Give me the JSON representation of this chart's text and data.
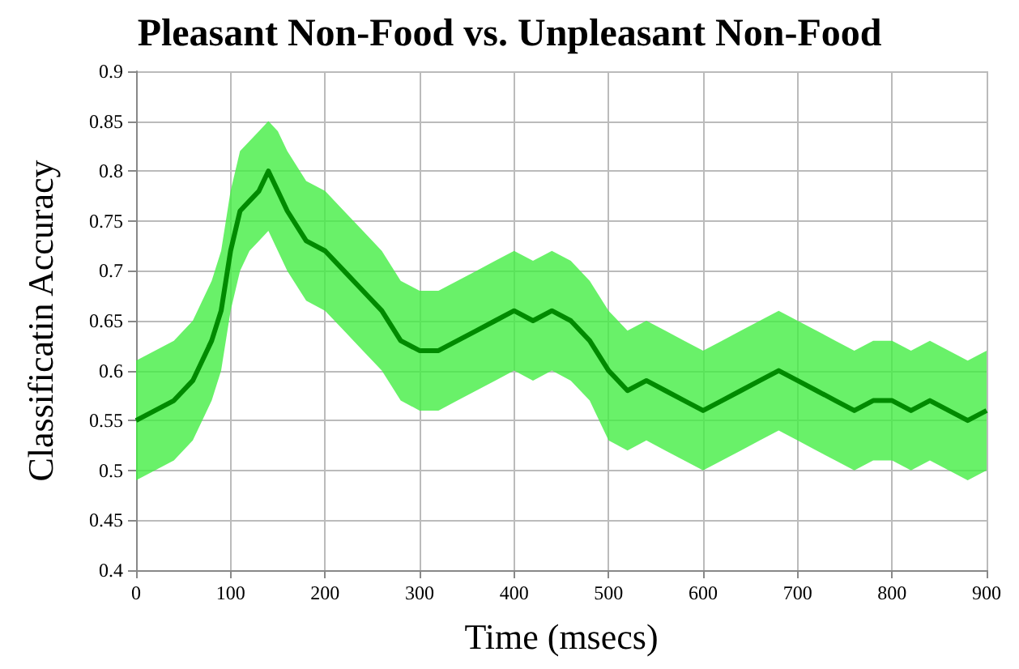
{
  "chart_data": {
    "type": "line",
    "title": "Pleasant Non-Food vs. Unpleasant Non-Food",
    "xlabel": "Time (msecs)",
    "ylabel": "Classificatin Accuracy",
    "x": [
      0,
      20,
      40,
      60,
      80,
      90,
      100,
      110,
      120,
      130,
      140,
      150,
      160,
      180,
      200,
      220,
      240,
      260,
      280,
      300,
      320,
      340,
      360,
      380,
      400,
      420,
      440,
      460,
      480,
      500,
      520,
      540,
      560,
      580,
      600,
      620,
      640,
      660,
      680,
      700,
      720,
      740,
      760,
      780,
      800,
      820,
      840,
      860,
      880,
      900
    ],
    "series": [
      {
        "color": "#008a00",
        "values": [
          0.55,
          0.56,
          0.57,
          0.59,
          0.63,
          0.66,
          0.72,
          0.76,
          0.77,
          0.78,
          0.8,
          0.78,
          0.76,
          0.73,
          0.72,
          0.7,
          0.68,
          0.66,
          0.63,
          0.62,
          0.62,
          0.63,
          0.64,
          0.65,
          0.66,
          0.65,
          0.66,
          0.65,
          0.63,
          0.6,
          0.58,
          0.59,
          0.58,
          0.57,
          0.56,
          0.57,
          0.58,
          0.59,
          0.6,
          0.59,
          0.58,
          0.57,
          0.56,
          0.57,
          0.57,
          0.56,
          0.57,
          0.56,
          0.55,
          0.56
        ],
        "lower": [
          0.49,
          0.5,
          0.51,
          0.53,
          0.57,
          0.6,
          0.66,
          0.7,
          0.72,
          0.73,
          0.74,
          0.72,
          0.7,
          0.67,
          0.66,
          0.64,
          0.62,
          0.6,
          0.57,
          0.56,
          0.56,
          0.57,
          0.58,
          0.59,
          0.6,
          0.59,
          0.6,
          0.59,
          0.57,
          0.53,
          0.52,
          0.53,
          0.52,
          0.51,
          0.5,
          0.51,
          0.52,
          0.53,
          0.54,
          0.53,
          0.52,
          0.51,
          0.5,
          0.51,
          0.51,
          0.5,
          0.51,
          0.5,
          0.49,
          0.5
        ],
        "upper": [
          0.61,
          0.62,
          0.63,
          0.65,
          0.69,
          0.72,
          0.78,
          0.82,
          0.83,
          0.84,
          0.85,
          0.84,
          0.82,
          0.79,
          0.78,
          0.76,
          0.74,
          0.72,
          0.69,
          0.68,
          0.68,
          0.69,
          0.7,
          0.71,
          0.72,
          0.71,
          0.72,
          0.71,
          0.69,
          0.66,
          0.64,
          0.65,
          0.64,
          0.63,
          0.62,
          0.63,
          0.64,
          0.65,
          0.66,
          0.65,
          0.64,
          0.63,
          0.62,
          0.63,
          0.63,
          0.62,
          0.63,
          0.62,
          0.61,
          0.62
        ]
      }
    ],
    "xlim": [
      0,
      900
    ],
    "xticks": [
      0,
      100,
      200,
      300,
      400,
      500,
      600,
      700,
      800,
      900
    ],
    "ylim": [
      0.4,
      0.9
    ],
    "yticks": [
      0.4,
      0.45,
      0.5,
      0.55,
      0.6,
      0.65,
      0.7,
      0.75,
      0.8,
      0.85,
      0.9
    ],
    "grid": true,
    "marker": "none",
    "line_style": "solid"
  }
}
